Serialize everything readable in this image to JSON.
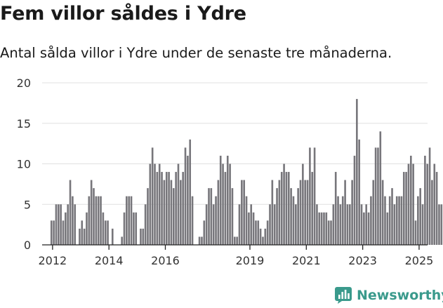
{
  "header": {
    "title": "Fem villor såldes i Ydre",
    "subtitle": "Antal sålda villor i Ydre under de senaste tre månaderna."
  },
  "brand": {
    "name": "Newsworthy",
    "icon": "bar-chart-logo-icon",
    "color": "#3a9a8c"
  },
  "chart_data": {
    "type": "bar",
    "title": "",
    "xlabel": "",
    "ylabel": "",
    "ylim": [
      0,
      20
    ],
    "yticks": [
      0,
      5,
      10,
      15,
      20
    ],
    "xlim": [
      2011.63,
      2025.3
    ],
    "xticks": [
      2012,
      2014,
      2016,
      2019,
      2021,
      2023,
      2025
    ],
    "grid": true,
    "bar_color": "#77767b",
    "highlight_color": "#1a9e8f",
    "series": [
      {
        "start": 2011.96,
        "step_months": 1,
        "values": [
          3,
          3,
          5,
          5,
          5,
          3,
          4,
          5,
          8,
          6,
          5,
          0,
          2,
          3,
          2,
          4,
          6,
          8,
          7,
          6,
          6,
          6,
          4,
          3,
          3,
          0,
          2,
          0,
          0,
          0,
          1,
          4,
          6,
          6,
          6,
          4,
          4,
          0,
          2,
          2,
          5,
          7,
          10,
          12,
          10,
          9,
          10,
          9,
          8,
          9,
          9,
          8,
          7,
          9,
          10,
          8,
          9,
          12,
          11,
          13,
          6,
          0,
          0,
          1,
          1,
          3,
          5,
          7,
          7,
          5,
          6,
          8,
          11,
          10,
          9,
          11,
          10,
          7,
          1,
          1,
          5,
          8,
          8,
          6,
          4,
          5,
          4,
          3,
          3,
          2,
          1,
          2,
          3,
          5,
          8,
          5,
          7,
          8,
          9,
          10,
          9,
          9,
          7,
          6,
          5,
          7,
          8,
          10,
          8,
          8,
          12,
          9,
          12,
          5,
          4,
          4,
          4,
          4,
          3,
          3,
          5,
          9,
          6,
          5,
          6,
          8,
          5,
          5,
          8,
          11,
          18,
          13,
          5,
          4,
          5,
          4,
          6,
          8,
          12,
          12,
          14,
          8,
          6,
          4,
          6,
          7,
          5,
          6,
          6,
          6,
          9,
          9,
          10,
          11,
          10,
          3,
          6,
          7,
          5,
          11,
          10,
          12,
          8,
          10,
          9,
          5,
          5,
          0,
          5
        ],
        "highlight_last": true
      }
    ],
    "annotation": {
      "text": "5",
      "target": "last"
    }
  }
}
